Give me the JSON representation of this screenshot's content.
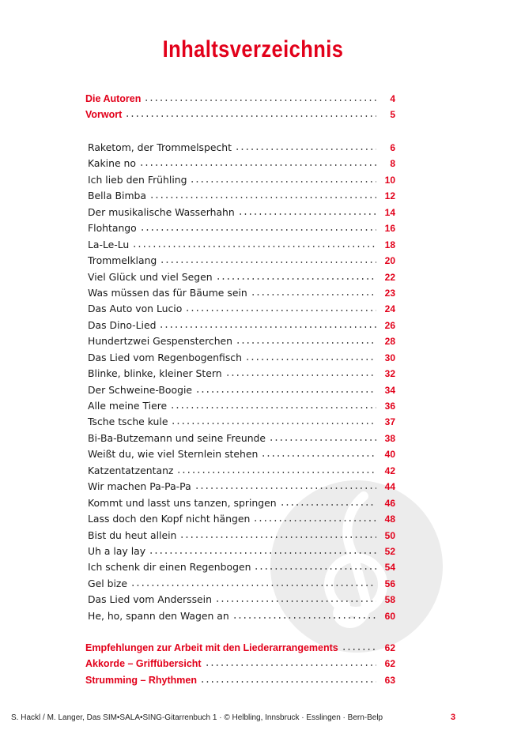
{
  "title": "Inhaltsverzeichnis",
  "intro": [
    {
      "label": "Die Autoren",
      "page": "4"
    },
    {
      "label": "Vorwort",
      "page": "5"
    }
  ],
  "songs": [
    {
      "label": "Raketom, der Trommelspecht",
      "page": "6"
    },
    {
      "label": "Kakine no",
      "page": "8"
    },
    {
      "label": "Ich lieb den Frühling",
      "page": "10"
    },
    {
      "label": "Bella Bimba",
      "page": "12"
    },
    {
      "label": "Der musikalische Wasserhahn",
      "page": "14"
    },
    {
      "label": "Flohtango",
      "page": "16"
    },
    {
      "label": "La-Le-Lu",
      "page": "18"
    },
    {
      "label": "Trommelklang",
      "page": "20"
    },
    {
      "label": "Viel Glück und viel Segen",
      "page": "22"
    },
    {
      "label": "Was müssen das für Bäume sein",
      "page": "23"
    },
    {
      "label": "Das Auto von Lucio",
      "page": "24"
    },
    {
      "label": "Das Dino-Lied",
      "page": "26"
    },
    {
      "label": "Hundertzwei Gespensterchen",
      "page": "28"
    },
    {
      "label": "Das Lied vom Regenbogenfisch",
      "page": "30"
    },
    {
      "label": "Blinke, blinke, kleiner Stern",
      "page": "32"
    },
    {
      "label": "Der Schweine-Boogie",
      "page": "34"
    },
    {
      "label": "Alle meine Tiere",
      "page": "36"
    },
    {
      "label": "Tsche tsche kule",
      "page": "37"
    },
    {
      "label": "Bi-Ba-Butzemann und seine Freunde",
      "page": "38"
    },
    {
      "label": "Weißt du, wie viel Sternlein stehen",
      "page": "40"
    },
    {
      "label": "Katzentatzentanz",
      "page": "42"
    },
    {
      "label": "Wir machen Pa-Pa-Pa",
      "page": "44"
    },
    {
      "label": "Kommt und lasst uns tanzen, springen",
      "page": "46"
    },
    {
      "label": "Lass doch den Kopf nicht hängen",
      "page": "48"
    },
    {
      "label": "Bist du heut allein",
      "page": "50"
    },
    {
      "label": "Uh a lay lay",
      "page": "52"
    },
    {
      "label": "Ich schenk dir einen Regenbogen",
      "page": "54"
    },
    {
      "label": "Gel bize",
      "page": "56"
    },
    {
      "label": "Das Lied vom Anderssein",
      "page": "58"
    },
    {
      "label": "He, ho, spann den Wagen an",
      "page": "60"
    }
  ],
  "appendix": [
    {
      "label": "Empfehlungen zur Arbeit mit den Liederarrangements",
      "page": "62"
    },
    {
      "label": "Akkorde – Griffübersicht",
      "page": "62"
    },
    {
      "label": "Strumming – Rhythmen",
      "page": "63"
    }
  ],
  "footer": {
    "text": "S. Hackl / M. Langer, Das SIM•SALA•SING-Gitarrenbuch 1 · © Helbling, Innsbruck · Esslingen · Bern-Belp",
    "page": "3"
  },
  "colors": {
    "accent": "#e2001a",
    "watermark": "#ececec"
  },
  "icons": {
    "watermark": "treble-clef-icon"
  }
}
